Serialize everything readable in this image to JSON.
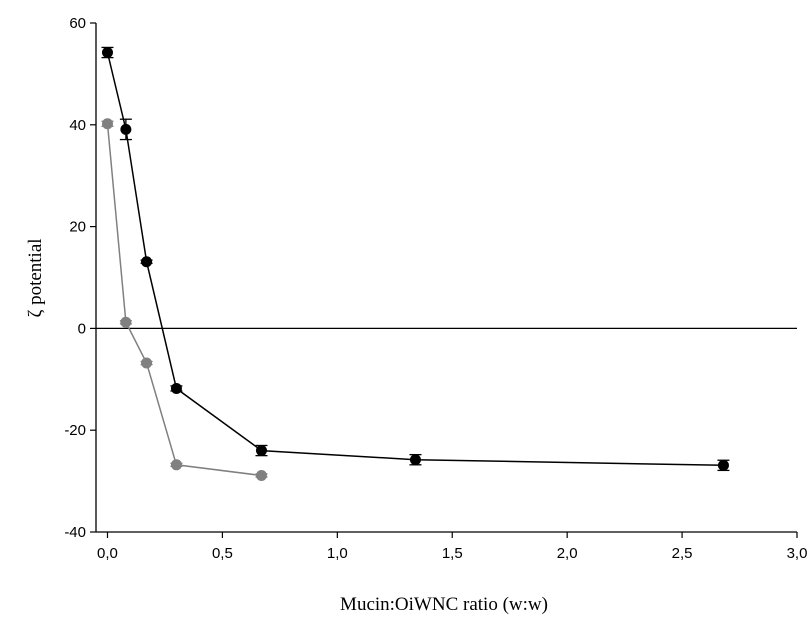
{
  "chart_data": {
    "type": "scatter",
    "title": "",
    "xlabel": "Mucin:OiWNC ratio (w:w)",
    "ylabel": "ζ potential",
    "xlim": [
      -0.05,
      3.0
    ],
    "ylim": [
      -40,
      60
    ],
    "xticks": [
      0.0,
      0.5,
      1.0,
      1.5,
      2.0,
      2.5,
      3.0
    ],
    "xtick_labels": [
      "0,0",
      "0,5",
      "1,0",
      "1,5",
      "2,0",
      "2,5",
      "3,0"
    ],
    "yticks": [
      -40,
      -20,
      0,
      20,
      40,
      60
    ],
    "ytick_labels": [
      "-40",
      "-20",
      "0",
      "20",
      "40",
      "60"
    ],
    "reference_line_y": 0,
    "grid": false,
    "legend": "none",
    "series": [
      {
        "color": "#000000",
        "x": [
          0.0,
          0.08,
          0.17,
          0.3,
          0.67,
          1.34,
          2.68
        ],
        "y": [
          54.2,
          39.1,
          13.1,
          -11.8,
          -24.0,
          -25.8,
          -26.9
        ],
        "yerr": [
          1.0,
          2.0,
          0.3,
          0.5,
          1.0,
          1.0,
          1.0
        ]
      },
      {
        "color": "#808080",
        "x": [
          0.0,
          0.08,
          0.17,
          0.3,
          0.67
        ],
        "y": [
          40.2,
          1.2,
          -6.8,
          -26.8,
          -28.9
        ],
        "yerr": [
          0.5,
          0.3,
          0.3,
          0.3,
          0.3
        ]
      }
    ]
  }
}
